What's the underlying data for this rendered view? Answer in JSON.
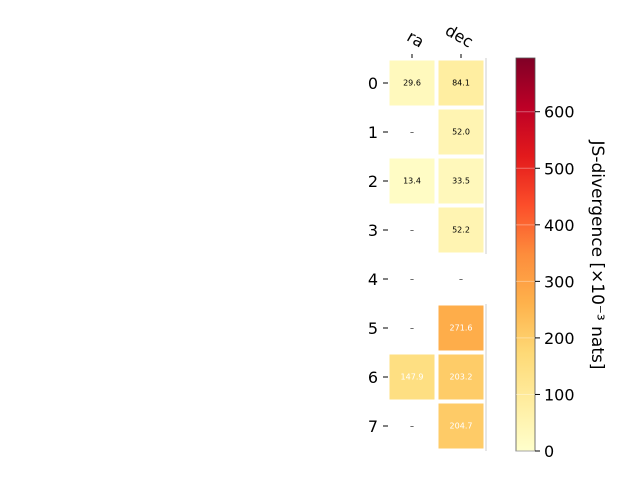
{
  "chart_data": {
    "type": "heatmap",
    "columns": [
      "ra",
      "dec"
    ],
    "rows": [
      "0",
      "1",
      "2",
      "3",
      "4",
      "5",
      "6",
      "7"
    ],
    "values": [
      [
        29.6,
        84.1
      ],
      [
        null,
        52.0
      ],
      [
        13.4,
        33.5
      ],
      [
        null,
        52.2
      ],
      [
        null,
        null
      ],
      [
        null,
        271.6
      ],
      [
        147.9,
        203.2
      ],
      [
        null,
        204.7
      ]
    ],
    "cell_labels": [
      [
        "29.6",
        "84.1"
      ],
      [
        "–",
        "52.0"
      ],
      [
        "13.4",
        "33.5"
      ],
      [
        "–",
        "52.2"
      ],
      [
        "–",
        "–"
      ],
      [
        "–",
        "271.6"
      ],
      [
        "147.9",
        "203.2"
      ],
      [
        "–",
        "204.7"
      ]
    ],
    "colorbar": {
      "label": "JS-divergence [×10⁻³ nats]",
      "ticks": [
        "0",
        "100",
        "200",
        "300",
        "400",
        "500",
        "600"
      ],
      "tick_values": [
        0,
        100,
        200,
        300,
        400,
        500,
        600
      ],
      "range": [
        0,
        695
      ],
      "colormap": "YlOrRd"
    },
    "xlabel": "",
    "ylabel": "",
    "grid": false
  }
}
